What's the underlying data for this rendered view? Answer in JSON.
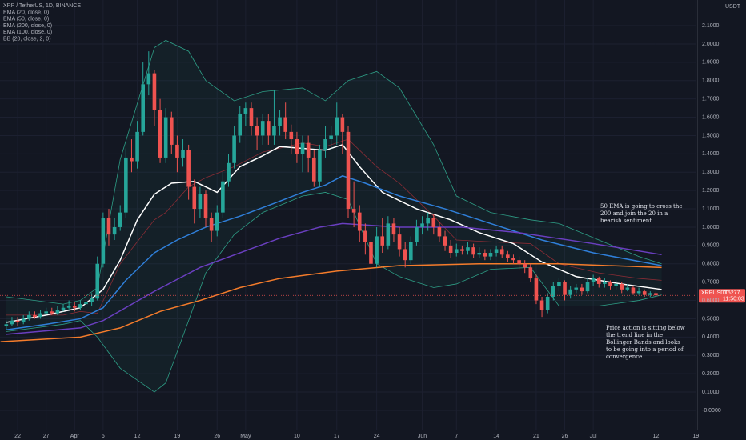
{
  "chart_data": {
    "type": "candlestick",
    "title": "XRP / TetherUS, 1D, BINANCE",
    "currency": "USDT",
    "up_color": "#26a69a",
    "down_color": "#ef5350",
    "grid": true,
    "xlim": [
      -3.1,
      119.1
    ],
    "xticks": [
      {
        "value": 0,
        "label": "22"
      },
      {
        "value": 5,
        "label": "27"
      },
      {
        "value": 10,
        "label": "Apr"
      },
      {
        "value": 15,
        "label": "6"
      },
      {
        "value": 21,
        "label": "12"
      },
      {
        "value": 28,
        "label": "19"
      },
      {
        "value": 35,
        "label": "26"
      },
      {
        "value": 40,
        "label": "May"
      },
      {
        "value": 49,
        "label": "10"
      },
      {
        "value": 56,
        "label": "17"
      },
      {
        "value": 63,
        "label": "24"
      },
      {
        "value": 71,
        "label": "Jun"
      },
      {
        "value": 77,
        "label": "7"
      },
      {
        "value": 84,
        "label": "14"
      },
      {
        "value": 91,
        "label": "21"
      },
      {
        "value": 96,
        "label": "26"
      },
      {
        "value": 101,
        "label": "Jul"
      },
      {
        "value": 112,
        "label": "12"
      },
      {
        "value": 119,
        "label": "19"
      }
    ],
    "ylim": [
      -0.105,
      2.24
    ],
    "yticks": [
      {
        "value": 0,
        "label": "-0.0000"
      },
      {
        "value": 0.1,
        "label": "0.1000"
      },
      {
        "value": 0.2,
        "label": "0.2000"
      },
      {
        "value": 0.3,
        "label": "0.3000"
      },
      {
        "value": 0.4,
        "label": "0.4000"
      },
      {
        "value": 0.5,
        "label": "0.5000"
      },
      {
        "value": 0.6,
        "label": "0.6000"
      },
      {
        "value": 0.7,
        "label": "0.7000"
      },
      {
        "value": 0.8,
        "label": "0.8000"
      },
      {
        "value": 0.9,
        "label": "0.9000"
      },
      {
        "value": 1.0,
        "label": "1.0000"
      },
      {
        "value": 1.1,
        "label": "1.1000"
      },
      {
        "value": 1.2,
        "label": "1.2000"
      },
      {
        "value": 1.3,
        "label": "1.3000"
      },
      {
        "value": 1.4,
        "label": "1.4000"
      },
      {
        "value": 1.5,
        "label": "1.5000"
      },
      {
        "value": 1.6,
        "label": "1.6000"
      },
      {
        "value": 1.7,
        "label": "1.7000"
      },
      {
        "value": 1.8,
        "label": "1.8000"
      },
      {
        "value": 1.9,
        "label": "1.9000"
      },
      {
        "value": 2.0,
        "label": "2.0000"
      },
      {
        "value": 2.1,
        "label": "2.1000"
      }
    ],
    "x": [
      -2,
      -1,
      0,
      1,
      2,
      3,
      4,
      5,
      6,
      7,
      8,
      9,
      10,
      11,
      12,
      13,
      14,
      15,
      16,
      17,
      18,
      19,
      20,
      21,
      22,
      23,
      24,
      25,
      26,
      27,
      28,
      29,
      30,
      31,
      32,
      33,
      34,
      35,
      36,
      37,
      38,
      39,
      40,
      41,
      42,
      43,
      44,
      45,
      46,
      47,
      48,
      49,
      50,
      51,
      52,
      53,
      54,
      55,
      56,
      57,
      58,
      59,
      60,
      61,
      62,
      63,
      64,
      65,
      66,
      67,
      68,
      69,
      70,
      71,
      72,
      73,
      74,
      75,
      76,
      77,
      78,
      79,
      80,
      81,
      82,
      83,
      84,
      85,
      86,
      87,
      88,
      89,
      90,
      91,
      92,
      93,
      94,
      95,
      96,
      97,
      98,
      99,
      100,
      101,
      102,
      103,
      104,
      105,
      106,
      107,
      108,
      109,
      110,
      111,
      112
    ],
    "open": [
      0.46,
      0.47,
      0.49,
      0.48,
      0.5,
      0.52,
      0.51,
      0.53,
      0.54,
      0.53,
      0.55,
      0.56,
      0.57,
      0.56,
      0.58,
      0.59,
      0.61,
      0.8,
      1.05,
      0.96,
      1.0,
      1.08,
      1.38,
      1.36,
      1.52,
      1.78,
      1.84,
      1.64,
      1.38,
      1.6,
      1.45,
      1.38,
      1.42,
      1.22,
      1.1,
      1.18,
      1.05,
      0.98,
      1.08,
      1.25,
      1.35,
      1.5,
      1.62,
      1.65,
      1.55,
      1.5,
      1.58,
      1.5,
      1.55,
      1.6,
      1.52,
      1.48,
      1.4,
      1.46,
      1.38,
      1.25,
      1.42,
      1.48,
      1.5,
      1.6,
      1.52,
      1.1,
      1.08,
      0.98,
      0.92,
      0.8,
      0.95,
      0.9,
      1.02,
      0.96,
      0.88,
      0.82,
      0.92,
      1.0,
      1.02,
      1.05,
      1.0,
      0.95,
      0.9,
      0.86,
      0.88,
      0.87,
      0.89,
      0.85,
      0.86,
      0.84,
      0.86,
      0.88,
      0.85,
      0.83,
      0.82,
      0.8,
      0.78,
      0.72,
      0.6,
      0.55,
      0.62,
      0.68,
      0.7,
      0.63,
      0.66,
      0.67,
      0.65,
      0.7,
      0.72,
      0.69,
      0.7,
      0.68,
      0.69,
      0.66,
      0.67,
      0.64,
      0.65,
      0.63,
      0.64
    ],
    "high": [
      0.49,
      0.51,
      0.51,
      0.52,
      0.54,
      0.54,
      0.55,
      0.56,
      0.56,
      0.57,
      0.58,
      0.6,
      0.59,
      0.6,
      0.62,
      0.64,
      0.84,
      1.08,
      1.1,
      1.05,
      1.12,
      1.43,
      1.48,
      1.58,
      1.9,
      1.96,
      1.86,
      1.7,
      1.65,
      1.63,
      1.5,
      1.48,
      1.45,
      1.26,
      1.22,
      1.2,
      1.08,
      1.12,
      1.3,
      1.4,
      1.55,
      1.66,
      1.68,
      1.68,
      1.6,
      1.62,
      1.62,
      1.75,
      1.64,
      1.68,
      1.56,
      1.52,
      1.5,
      1.5,
      1.42,
      1.45,
      1.55,
      1.55,
      1.68,
      1.62,
      1.55,
      1.25,
      1.12,
      1.02,
      0.95,
      1.0,
      1.05,
      1.06,
      1.05,
      1.0,
      0.92,
      0.95,
      1.04,
      1.06,
      1.08,
      1.07,
      1.03,
      0.98,
      0.93,
      0.91,
      0.9,
      0.92,
      0.91,
      0.89,
      0.88,
      0.88,
      0.9,
      0.9,
      0.87,
      0.85,
      0.84,
      0.82,
      0.8,
      0.74,
      0.62,
      0.64,
      0.7,
      0.72,
      0.71,
      0.68,
      0.69,
      0.69,
      0.72,
      0.74,
      0.73,
      0.72,
      0.71,
      0.71,
      0.7,
      0.69,
      0.68,
      0.67,
      0.66,
      0.65,
      0.65
    ],
    "low": [
      0.44,
      0.46,
      0.46,
      0.47,
      0.49,
      0.5,
      0.5,
      0.52,
      0.52,
      0.52,
      0.54,
      0.55,
      0.54,
      0.55,
      0.57,
      0.57,
      0.6,
      0.78,
      0.9,
      0.93,
      0.98,
      1.05,
      1.3,
      1.32,
      1.5,
      1.72,
      1.55,
      1.35,
      1.35,
      1.4,
      1.3,
      1.33,
      1.15,
      1.02,
      1.05,
      1.0,
      0.92,
      0.95,
      1.05,
      1.22,
      1.32,
      1.46,
      1.55,
      1.5,
      1.42,
      1.45,
      1.45,
      1.45,
      1.5,
      1.48,
      1.4,
      1.35,
      1.3,
      1.3,
      1.22,
      1.22,
      1.38,
      1.42,
      1.45,
      1.4,
      1.05,
      1.0,
      0.92,
      0.85,
      0.65,
      0.78,
      0.86,
      0.88,
      0.92,
      0.84,
      0.78,
      0.8,
      0.9,
      0.96,
      0.98,
      0.96,
      0.92,
      0.87,
      0.83,
      0.84,
      0.85,
      0.85,
      0.83,
      0.83,
      0.82,
      0.82,
      0.84,
      0.83,
      0.81,
      0.8,
      0.77,
      0.75,
      0.7,
      0.58,
      0.51,
      0.53,
      0.6,
      0.65,
      0.6,
      0.61,
      0.64,
      0.63,
      0.64,
      0.68,
      0.67,
      0.67,
      0.66,
      0.66,
      0.64,
      0.65,
      0.63,
      0.63,
      0.62,
      0.62,
      0.61
    ],
    "close": [
      0.47,
      0.49,
      0.48,
      0.5,
      0.52,
      0.51,
      0.53,
      0.54,
      0.53,
      0.55,
      0.56,
      0.57,
      0.56,
      0.58,
      0.59,
      0.61,
      0.8,
      1.05,
      0.96,
      1.0,
      1.08,
      1.38,
      1.36,
      1.52,
      1.78,
      1.84,
      1.64,
      1.38,
      1.6,
      1.45,
      1.38,
      1.42,
      1.22,
      1.1,
      1.18,
      1.05,
      0.98,
      1.08,
      1.25,
      1.35,
      1.5,
      1.62,
      1.65,
      1.55,
      1.5,
      1.58,
      1.5,
      1.55,
      1.6,
      1.52,
      1.48,
      1.4,
      1.46,
      1.38,
      1.25,
      1.42,
      1.48,
      1.5,
      1.6,
      1.52,
      1.1,
      1.08,
      0.98,
      0.92,
      0.8,
      0.95,
      0.9,
      1.02,
      0.96,
      0.88,
      0.82,
      0.92,
      1.0,
      1.02,
      1.05,
      1.0,
      0.95,
      0.9,
      0.86,
      0.88,
      0.87,
      0.89,
      0.85,
      0.86,
      0.84,
      0.86,
      0.88,
      0.85,
      0.83,
      0.82,
      0.8,
      0.78,
      0.72,
      0.6,
      0.55,
      0.62,
      0.68,
      0.7,
      0.63,
      0.66,
      0.67,
      0.65,
      0.7,
      0.72,
      0.69,
      0.7,
      0.68,
      0.69,
      0.66,
      0.67,
      0.64,
      0.65,
      0.63,
      0.64,
      0.6277
    ],
    "lines": [
      {
        "name": "EMA (20, close, 0)",
        "color": "#ffffff",
        "x": [
          -2,
          5,
          11,
          15,
          18,
          21,
          24,
          27,
          31,
          35,
          39,
          43,
          46,
          50,
          54,
          57,
          60,
          64,
          70,
          76,
          81,
          87,
          92,
          98,
          106,
          113
        ],
        "values": [
          0.48,
          0.52,
          0.56,
          0.66,
          0.82,
          1.04,
          1.18,
          1.24,
          1.25,
          1.19,
          1.33,
          1.39,
          1.44,
          1.43,
          1.42,
          1.45,
          1.33,
          1.19,
          1.1,
          1.04,
          0.97,
          0.91,
          0.81,
          0.73,
          0.69,
          0.66
        ]
      },
      {
        "name": "EMA (50, close, 0)",
        "color": "#2f7fd9",
        "x": [
          -2,
          5,
          11,
          15,
          19,
          24,
          28,
          33,
          39,
          45,
          50,
          54,
          57,
          61,
          67,
          75,
          84,
          92,
          101,
          113
        ],
        "values": [
          0.44,
          0.47,
          0.5,
          0.56,
          0.71,
          0.86,
          0.93,
          1.0,
          1.06,
          1.13,
          1.19,
          1.23,
          1.28,
          1.24,
          1.17,
          1.1,
          1.01,
          0.93,
          0.86,
          0.79
        ]
      },
      {
        "name": "EMA (200, close, 0)",
        "color": "#f57c2b",
        "x": [
          -3,
          11,
          18,
          25,
          32,
          39,
          46,
          56,
          67,
          81,
          95,
          113
        ],
        "values": [
          0.375,
          0.4,
          0.45,
          0.54,
          0.6,
          0.67,
          0.72,
          0.76,
          0.79,
          0.8,
          0.8,
          0.78
        ]
      },
      {
        "name": "EMA (100, close, 0)",
        "color": "#6a3fc0",
        "x": [
          -2,
          11,
          15,
          24,
          32,
          39,
          46,
          53,
          57,
          67,
          78,
          88,
          101,
          113
        ],
        "values": [
          0.415,
          0.45,
          0.49,
          0.65,
          0.78,
          0.86,
          0.94,
          1.0,
          1.02,
          1.0,
          1.0,
          0.97,
          0.91,
          0.85
        ]
      }
    ],
    "bollinger": {
      "name": "BB (20, close, 2, 0)",
      "color": "#2e9e86",
      "basis_color": "#8a2c35",
      "x": [
        -2,
        8,
        11,
        14,
        18,
        24,
        26,
        30,
        33,
        38,
        43,
        50,
        54,
        58,
        63,
        67,
        73,
        77,
        83,
        90,
        95,
        102,
        109,
        113
      ],
      "upper": [
        0.62,
        0.58,
        0.6,
        0.67,
        1.37,
        1.98,
        2.02,
        1.96,
        1.8,
        1.69,
        1.74,
        1.76,
        1.69,
        1.8,
        1.85,
        1.76,
        1.45,
        1.17,
        1.08,
        1.04,
        1.02,
        0.93,
        0.84,
        0.8
      ],
      "basis": [
        0.52,
        0.52,
        0.54,
        0.53,
        0.8,
        1.04,
        1.08,
        1.22,
        1.27,
        1.33,
        1.41,
        1.46,
        1.44,
        1.48,
        1.33,
        1.24,
        1.06,
        0.93,
        0.92,
        0.91,
        0.8,
        0.75,
        0.72,
        0.71
      ],
      "lower": [
        0.43,
        0.47,
        0.49,
        0.4,
        0.23,
        0.1,
        0.15,
        0.49,
        0.75,
        0.96,
        1.08,
        1.17,
        1.19,
        1.15,
        0.8,
        0.73,
        0.67,
        0.69,
        0.77,
        0.78,
        0.57,
        0.57,
        0.6,
        0.63
      ]
    },
    "symbol_tag": "XRPUSDT",
    "last_price": 0.6277,
    "countdown": "11:50:03",
    "annotations": [
      {
        "lines": [
          "50 EMA is going to cross the",
          "200 and join the 20 in a",
          "bearish sentiment"
        ]
      },
      {
        "lines": [
          "Price action is sitting below",
          "the trend line in the",
          "Bollinger Bands and looks",
          "to be going into a period of",
          "convergence."
        ]
      }
    ]
  }
}
